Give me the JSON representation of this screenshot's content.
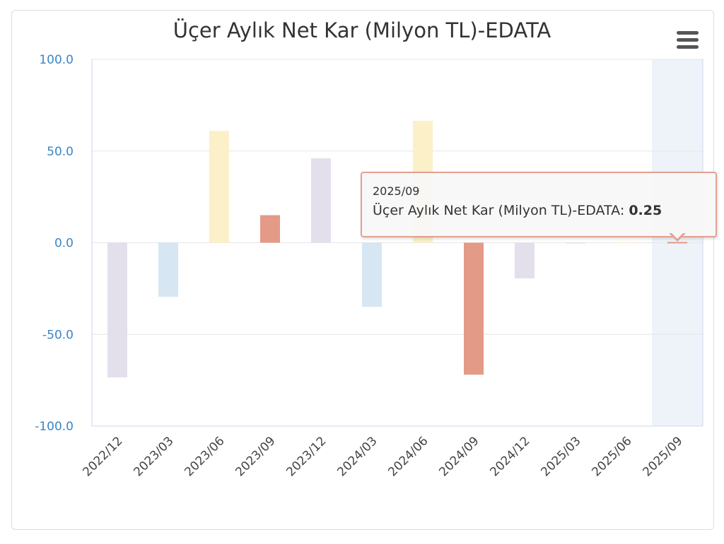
{
  "chart_data": {
    "type": "bar",
    "title": "Üçer Aylık Net Kar (Milyon TL)-EDATA",
    "categories": [
      "2022/12",
      "2023/03",
      "2023/06",
      "2023/09",
      "2023/12",
      "2024/03",
      "2024/06",
      "2024/09",
      "2024/12",
      "2025/03",
      "2025/06",
      "2025/09"
    ],
    "values": [
      -73.5,
      -29.5,
      61.0,
      15.0,
      46.0,
      -35.0,
      66.5,
      -72.0,
      -19.5,
      -0.5,
      0.3,
      0.25
    ],
    "bar_colors": [
      "#e3e0ec",
      "#d6e7f3",
      "#fbf0c8",
      "#e39a86",
      "#e3e0ec",
      "#d6e7f3",
      "#fbf0c8",
      "#e39a86",
      "#e3e0ec",
      "#d6e7f3",
      "#fbf0c8",
      "#e39a86"
    ],
    "ylim": [
      -100,
      100
    ],
    "yticks": [
      "100.0",
      "50.0",
      "0.0",
      "-50.0",
      "-100.0"
    ],
    "ytick_values": [
      100,
      50,
      0,
      -50,
      -100
    ],
    "grid": true,
    "highlight_index": 11,
    "highlight_color": "#eef3f9",
    "axis_color": "#ccd6eb",
    "grid_color": "#e6e6e6"
  },
  "tooltip": {
    "x": "2025/09",
    "series_name": "Üçer Aylık Net Kar (Milyon TL)-EDATA",
    "value": "0.25"
  },
  "menu": {
    "icon": "hamburger-menu-icon"
  }
}
